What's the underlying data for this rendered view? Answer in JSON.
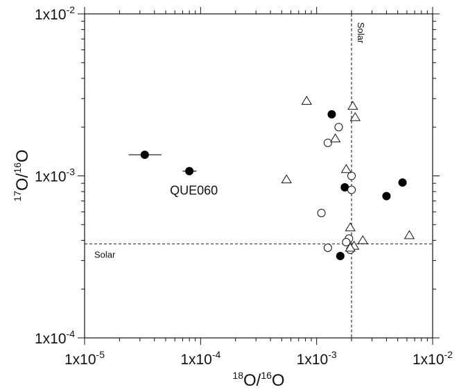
{
  "chart_data": {
    "type": "scatter",
    "title": "",
    "xlabel": {
      "sup": "18",
      "main": "O/",
      "sup2": "16",
      "main2": "O"
    },
    "ylabel": {
      "sup": "17",
      "main": "O/",
      "sup2": "16",
      "main2": "O"
    },
    "x_scale": "log",
    "y_scale": "log",
    "xlim": [
      1e-05,
      0.01
    ],
    "ylim": [
      0.0001,
      0.01
    ],
    "x_ticks": [
      {
        "value": 1e-05,
        "label": "1x10-5",
        "base": "1x10",
        "exp": "-5"
      },
      {
        "value": 0.0001,
        "label": "1x10-4",
        "base": "1x10",
        "exp": "-4"
      },
      {
        "value": 0.001,
        "label": "1x10-3",
        "base": "1x10",
        "exp": "-3"
      },
      {
        "value": 0.01,
        "label": "1x10-2",
        "base": "1x10",
        "exp": "-2"
      }
    ],
    "y_ticks": [
      {
        "value": 0.0001,
        "label": "1x10-4",
        "base": "1x10",
        "exp": "-4"
      },
      {
        "value": 0.001,
        "label": "1x10-3",
        "base": "1x10",
        "exp": "-3"
      },
      {
        "value": 0.01,
        "label": "1x10-2",
        "base": "1x10",
        "exp": "-2"
      }
    ],
    "grid": false,
    "legend": "none",
    "reference_lines": [
      {
        "orientation": "vertical",
        "value": 0.002,
        "label": "Solar"
      },
      {
        "orientation": "horizontal",
        "value": 0.00038,
        "label": "Solar"
      }
    ],
    "series": [
      {
        "marker": "filled-circle",
        "points": [
          {
            "x": 3.3e-05,
            "y": 0.00135,
            "xerr": [
              2.4e-05,
              4.6e-05
            ]
          },
          {
            "x": 8e-05,
            "y": 0.00107,
            "xerr": [
              7e-05,
              9.2e-05
            ]
          },
          {
            "x": 0.00135,
            "y": 0.0024
          },
          {
            "x": 0.00175,
            "y": 0.00085
          },
          {
            "x": 0.004,
            "y": 0.00075
          },
          {
            "x": 0.0055,
            "y": 0.00091
          },
          {
            "x": 0.0016,
            "y": 0.00032
          }
        ]
      },
      {
        "marker": "open-circle",
        "points": [
          {
            "x": 0.00155,
            "y": 0.002
          },
          {
            "x": 0.00125,
            "y": 0.0016
          },
          {
            "x": 0.002,
            "y": 0.001
          },
          {
            "x": 0.002,
            "y": 0.00082
          },
          {
            "x": 0.0011,
            "y": 0.00059
          },
          {
            "x": 0.0019,
            "y": 0.00041
          },
          {
            "x": 0.0018,
            "y": 0.00039
          },
          {
            "x": 0.00125,
            "y": 0.00036
          },
          {
            "x": 0.00195,
            "y": 0.00035
          }
        ]
      },
      {
        "marker": "open-triangle",
        "points": [
          {
            "x": 0.00082,
            "y": 0.0029
          },
          {
            "x": 0.00205,
            "y": 0.0027
          },
          {
            "x": 0.00215,
            "y": 0.0023
          },
          {
            "x": 0.00145,
            "y": 0.0017
          },
          {
            "x": 0.0018,
            "y": 0.0011
          },
          {
            "x": 0.00055,
            "y": 0.00095
          },
          {
            "x": 0.00195,
            "y": 0.00048
          },
          {
            "x": 0.0025,
            "y": 0.0004
          },
          {
            "x": 0.0063,
            "y": 0.00043
          },
          {
            "x": 0.0021,
            "y": 0.00037
          },
          {
            "x": 0.00195,
            "y": 0.00036
          }
        ]
      }
    ],
    "annotations": [
      {
        "text": "QUE060",
        "x": 8e-05,
        "y": 0.00107
      }
    ]
  }
}
